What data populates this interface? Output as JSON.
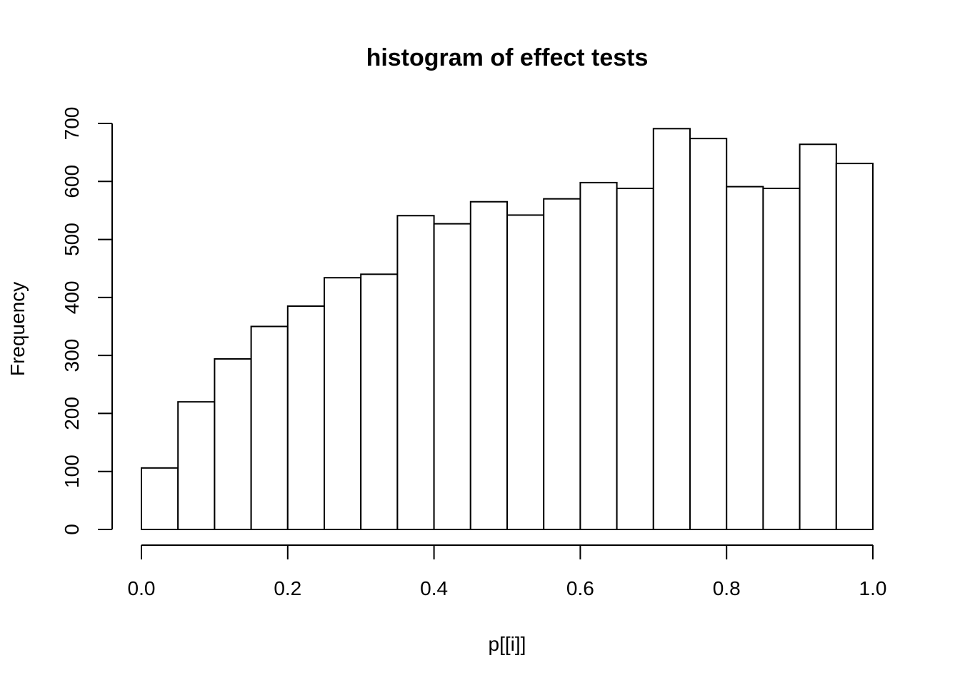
{
  "chart_data": {
    "type": "bar",
    "title": "histogram of effect tests",
    "xlabel": "p[[i]]",
    "ylabel": "Frequency",
    "bin_width": 0.05,
    "bins": [
      {
        "x0": 0.0,
        "x1": 0.05,
        "count": 106
      },
      {
        "x0": 0.05,
        "x1": 0.1,
        "count": 220
      },
      {
        "x0": 0.1,
        "x1": 0.15,
        "count": 294
      },
      {
        "x0": 0.15,
        "x1": 0.2,
        "count": 350
      },
      {
        "x0": 0.2,
        "x1": 0.25,
        "count": 385
      },
      {
        "x0": 0.25,
        "x1": 0.3,
        "count": 434
      },
      {
        "x0": 0.3,
        "x1": 0.35,
        "count": 440
      },
      {
        "x0": 0.35,
        "x1": 0.4,
        "count": 541
      },
      {
        "x0": 0.4,
        "x1": 0.45,
        "count": 527
      },
      {
        "x0": 0.45,
        "x1": 0.5,
        "count": 565
      },
      {
        "x0": 0.5,
        "x1": 0.55,
        "count": 542
      },
      {
        "x0": 0.55,
        "x1": 0.6,
        "count": 570
      },
      {
        "x0": 0.6,
        "x1": 0.65,
        "count": 598
      },
      {
        "x0": 0.65,
        "x1": 0.7,
        "count": 588
      },
      {
        "x0": 0.7,
        "x1": 0.75,
        "count": 691
      },
      {
        "x0": 0.75,
        "x1": 0.8,
        "count": 674
      },
      {
        "x0": 0.8,
        "x1": 0.85,
        "count": 591
      },
      {
        "x0": 0.85,
        "x1": 0.9,
        "count": 588
      },
      {
        "x0": 0.9,
        "x1": 0.95,
        "count": 664
      },
      {
        "x0": 0.95,
        "x1": 1.0,
        "count": 631
      }
    ],
    "xlim": [
      0,
      1
    ],
    "ylim": [
      0,
      700
    ],
    "xticks": [
      0.0,
      0.2,
      0.4,
      0.6,
      0.8,
      1.0
    ],
    "xtick_labels": [
      "0.0",
      "0.2",
      "0.4",
      "0.6",
      "0.8",
      "1.0"
    ],
    "yticks": [
      0,
      100,
      200,
      300,
      400,
      500,
      600,
      700
    ],
    "ytick_labels": [
      "0",
      "100",
      "200",
      "300",
      "400",
      "500",
      "600",
      "700"
    ],
    "grid": false,
    "legend": "none",
    "colors": {
      "bar_fill": "#ffffff",
      "bar_stroke": "#000000"
    }
  }
}
